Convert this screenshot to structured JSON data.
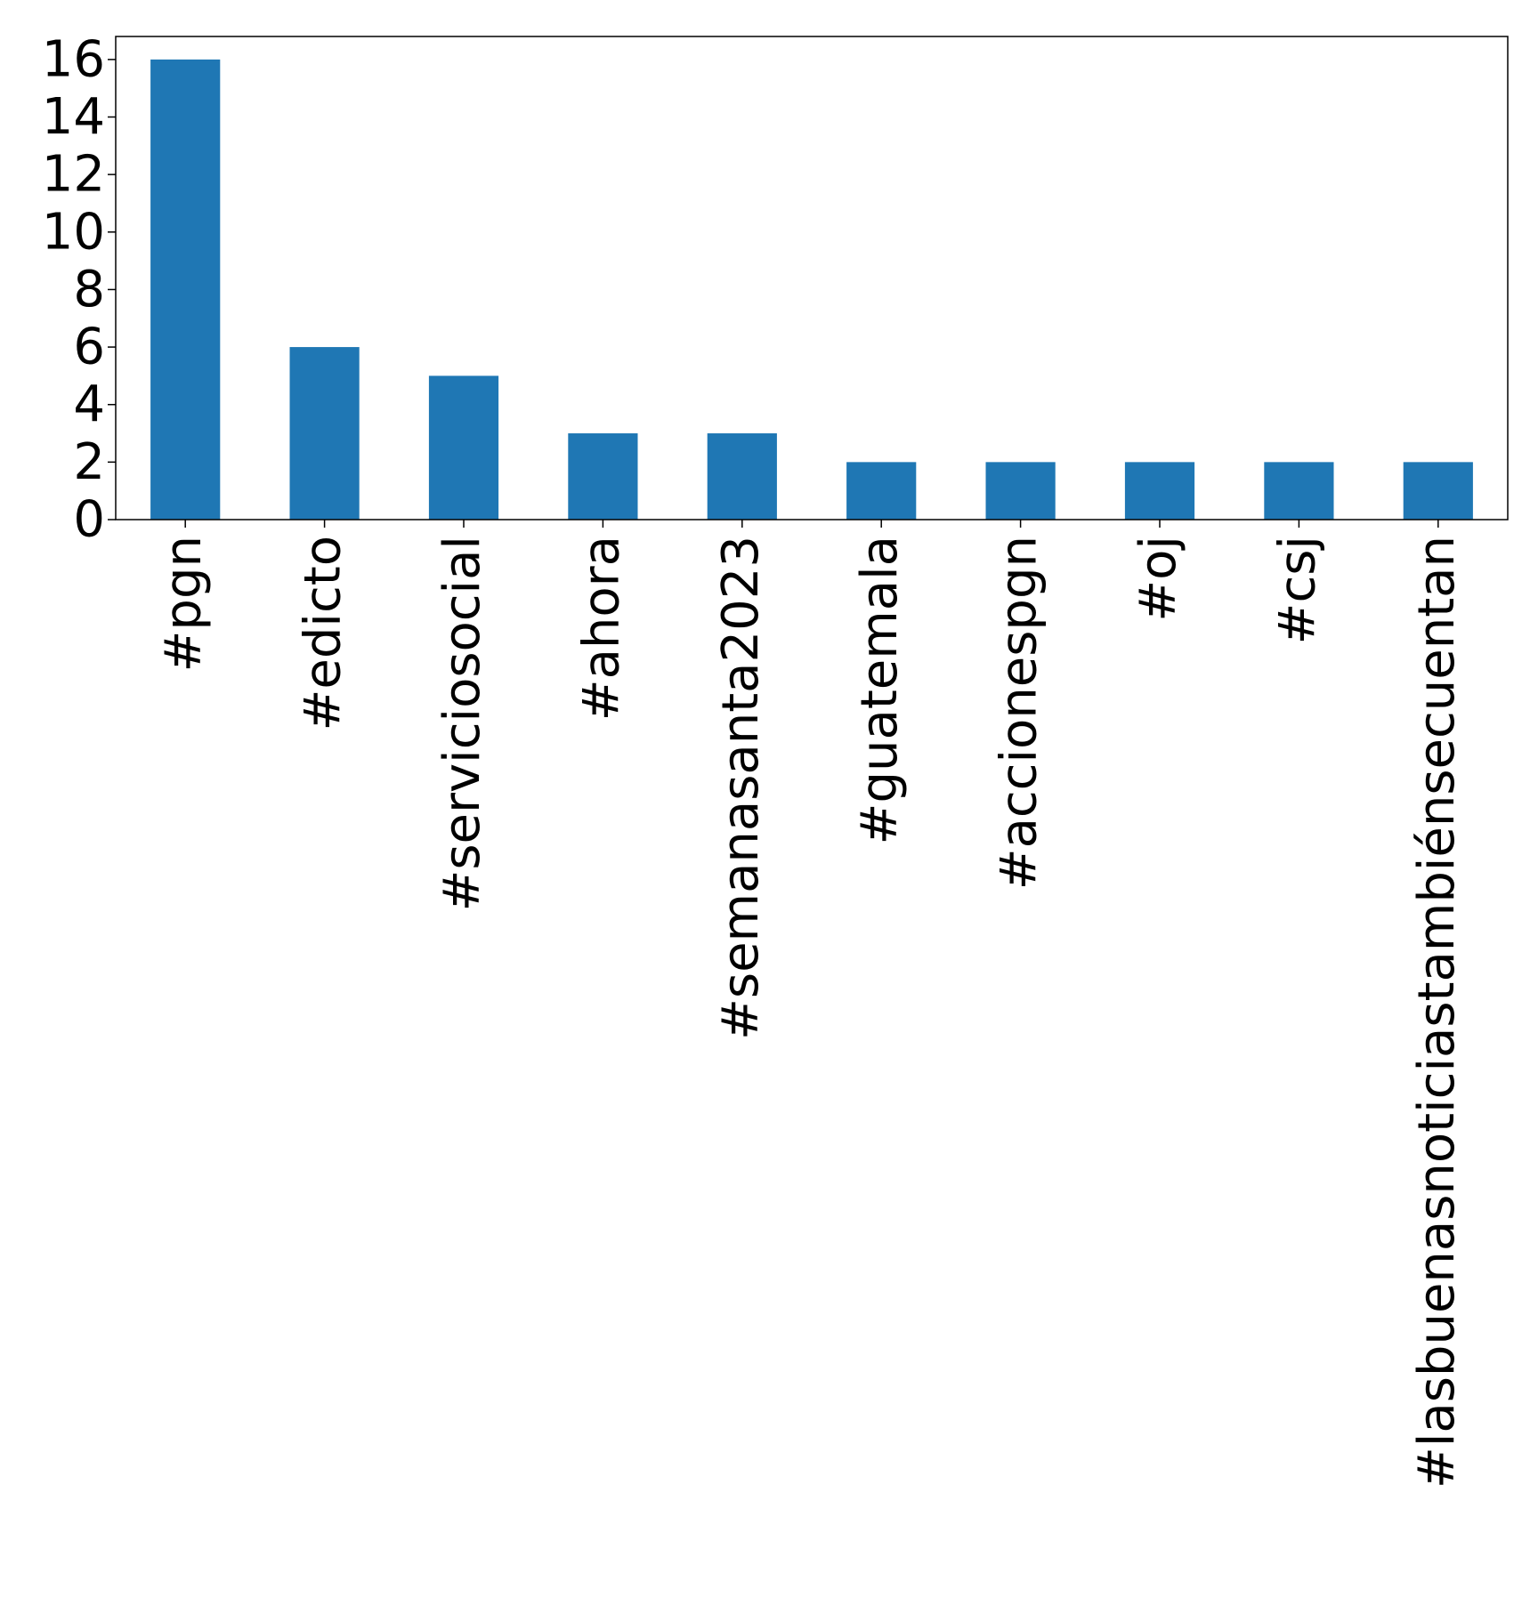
{
  "chart_data": {
    "type": "bar",
    "categories": [
      "#pgn",
      "#edicto",
      "#serviciosocial",
      "#ahora",
      "#semanasanta2023",
      "#guatemala",
      "#accionespgn",
      "#oj",
      "#csj",
      "#lasbuenasnoticiastambiénsecuentan"
    ],
    "values": [
      16,
      6,
      5,
      3,
      3,
      2,
      2,
      2,
      2,
      2
    ],
    "title": "",
    "xlabel": "",
    "ylabel": "",
    "ylim": [
      0,
      16.8
    ],
    "yticks": [
      "0",
      "2",
      "4",
      "6",
      "8",
      "10",
      "12",
      "14",
      "16"
    ],
    "bar_color": "#1f77b4",
    "grid": false,
    "legend": "none"
  }
}
